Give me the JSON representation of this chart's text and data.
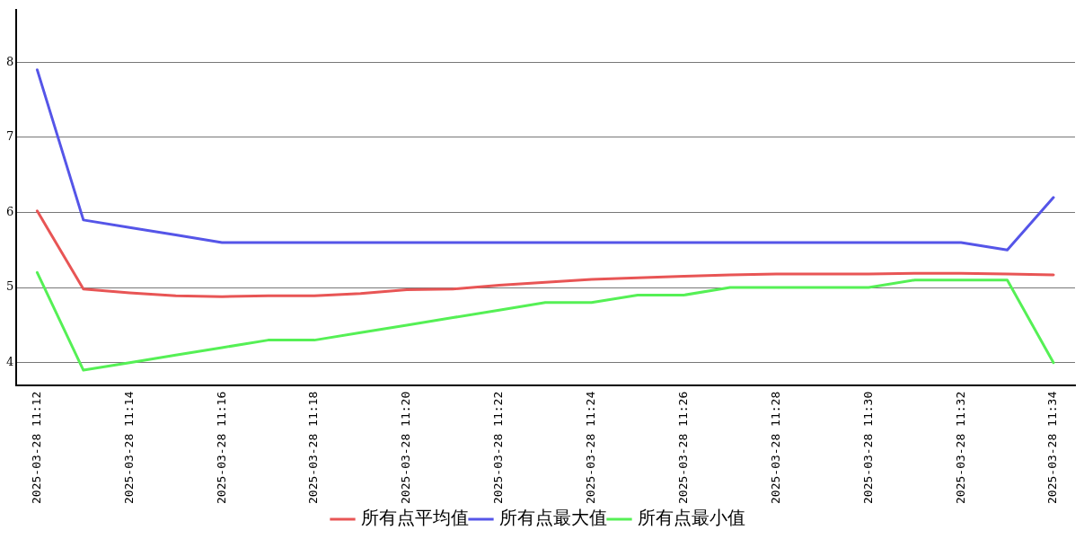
{
  "chart_data": {
    "type": "line",
    "x": [
      "2025-03-28T11:12",
      "2025-03-28T11:13",
      "2025-03-28T11:14",
      "2025-03-28T11:15",
      "2025-03-28T11:16",
      "2025-03-28T11:17",
      "2025-03-28T11:18",
      "2025-03-28T11:19",
      "2025-03-28T11:20",
      "2025-03-28T11:21",
      "2025-03-28T11:22",
      "2025-03-28T11:23",
      "2025-03-28T11:24",
      "2025-03-28T11:25",
      "2025-03-28T11:26",
      "2025-03-28T11:27",
      "2025-03-28T11:28",
      "2025-03-28T11:29",
      "2025-03-28T11:30",
      "2025-03-28T11:31",
      "2025-03-28T11:32",
      "2025-03-28T11:33",
      "2025-03-28T11:34"
    ],
    "series": [
      {
        "name": "所有点平均值",
        "color": "#e85555",
        "values": [
          6.02,
          4.98,
          4.93,
          4.89,
          4.88,
          4.89,
          4.89,
          4.92,
          4.97,
          4.98,
          5.03,
          5.07,
          5.11,
          5.13,
          5.15,
          5.17,
          5.18,
          5.18,
          5.18,
          5.19,
          5.19,
          5.18,
          5.17
        ]
      },
      {
        "name": "所有点最大值",
        "color": "#5555e8",
        "values": [
          7.9,
          5.9,
          5.8,
          5.7,
          5.6,
          5.6,
          5.6,
          5.6,
          5.6,
          5.6,
          5.6,
          5.6,
          5.6,
          5.6,
          5.6,
          5.6,
          5.6,
          5.6,
          5.6,
          5.6,
          5.6,
          5.5,
          6.2
        ]
      },
      {
        "name": "所有点最小值",
        "color": "#55f055",
        "values": [
          5.2,
          3.9,
          4.0,
          4.1,
          4.2,
          4.3,
          4.3,
          4.4,
          4.5,
          4.6,
          4.7,
          4.8,
          4.8,
          4.9,
          4.9,
          5.0,
          5.0,
          5.0,
          5.0,
          5.1,
          5.1,
          5.1,
          4.0
        ]
      }
    ],
    "xlim": [
      "2025-03-28T11:11:33",
      "2025-03-28T11:34:28"
    ],
    "xticks": [
      {
        "value": "2025-03-28T11:12",
        "label": "2025-03-28 11:12"
      },
      {
        "value": "2025-03-28T11:14",
        "label": "2025-03-28 11:14"
      },
      {
        "value": "2025-03-28T11:16",
        "label": "2025-03-28 11:16"
      },
      {
        "value": "2025-03-28T11:18",
        "label": "2025-03-28 11:18"
      },
      {
        "value": "2025-03-28T11:20",
        "label": "2025-03-28 11:20"
      },
      {
        "value": "2025-03-28T11:22",
        "label": "2025-03-28 11:22"
      },
      {
        "value": "2025-03-28T11:24",
        "label": "2025-03-28 11:24"
      },
      {
        "value": "2025-03-28T11:26",
        "label": "2025-03-28 11:26"
      },
      {
        "value": "2025-03-28T11:28",
        "label": "2025-03-28 11:28"
      },
      {
        "value": "2025-03-28T11:30",
        "label": "2025-03-28 11:30"
      },
      {
        "value": "2025-03-28T11:32",
        "label": "2025-03-28 11:32"
      },
      {
        "value": "2025-03-28T11:34",
        "label": "2025-03-28 11:34"
      }
    ],
    "ylim": [
      3.7,
      8.7
    ],
    "yticks": [
      4,
      5,
      6,
      7,
      8
    ],
    "grid": "y",
    "legend": "bottom",
    "marker": "none",
    "line_style": "solid"
  }
}
